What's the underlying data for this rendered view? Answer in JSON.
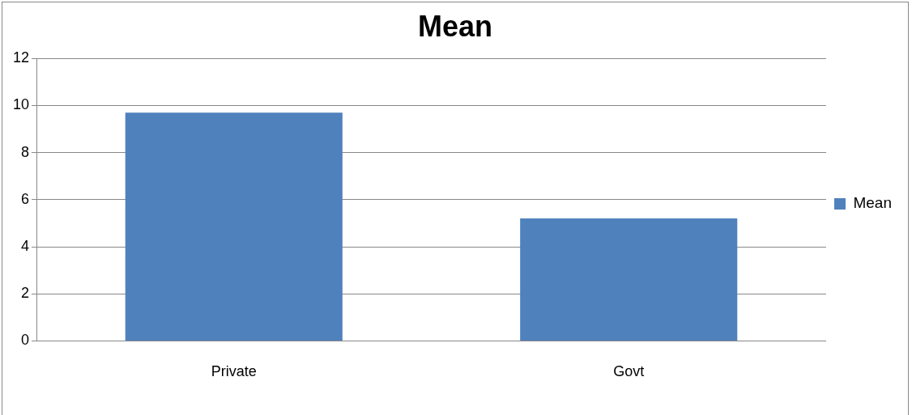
{
  "chart_data": {
    "type": "bar",
    "title": "Mean",
    "categories": [
      "Private",
      "Govt"
    ],
    "series": [
      {
        "name": "Mean",
        "color": "#4f81bd",
        "values": [
          9.7,
          5.2
        ]
      }
    ],
    "ylim": [
      0,
      12
    ],
    "yticks": [
      0,
      2,
      4,
      6,
      8,
      10,
      12
    ],
    "grid": "y",
    "legend": "right"
  }
}
